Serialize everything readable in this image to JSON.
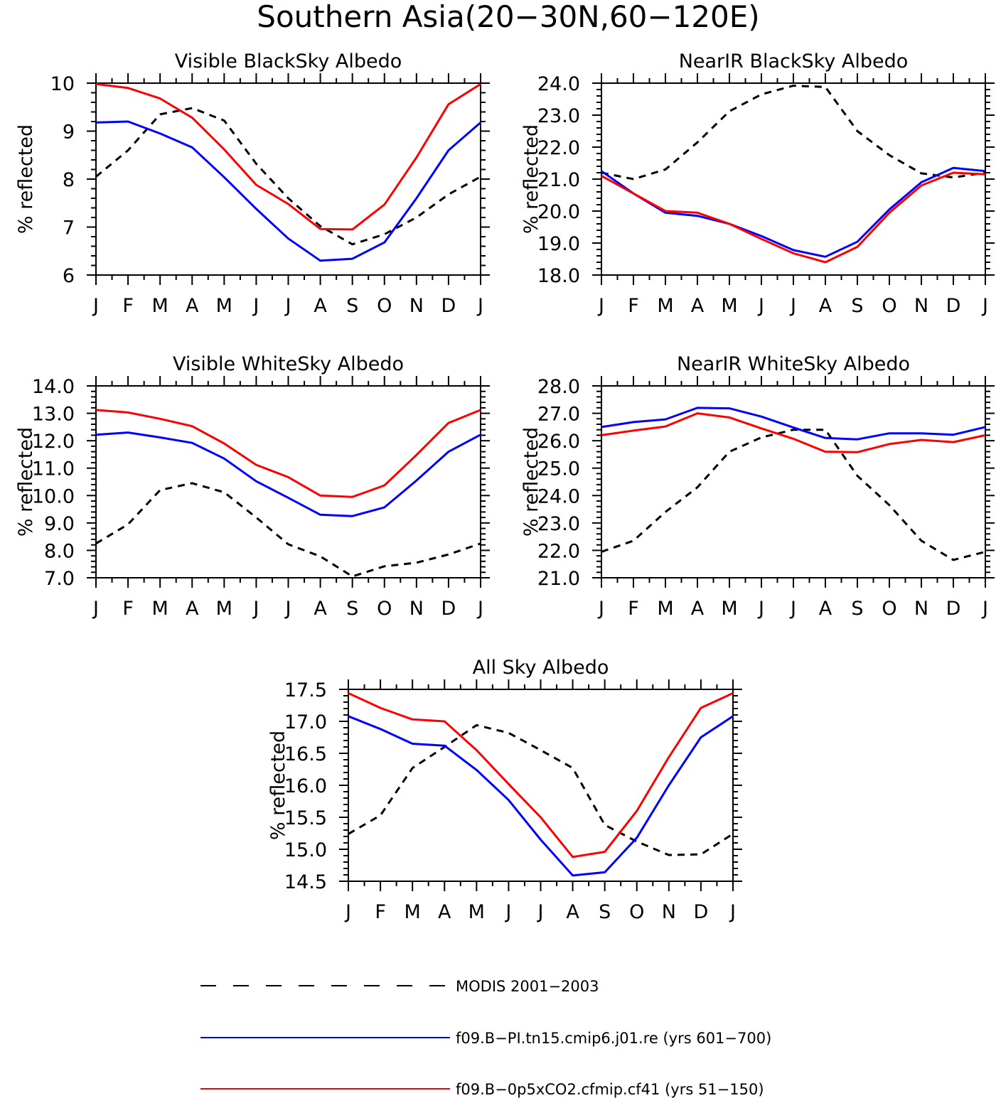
{
  "figure_title": "Southern Asia(20−30N,60−120E)",
  "colors": {
    "modis": "#000000",
    "pi": "#0000ff",
    "co2": "#ff0000"
  },
  "legend": {
    "modis": "MODIS 2001−2003",
    "pi": "f09.B−PI.tn15.cmip6.j01.re (yrs 601−700)",
    "co2": "f09.B−0p5xCO2.cfmip.cf41 (yrs 51−150)"
  },
  "chart_data": [
    {
      "type": "line",
      "title": "Visible BlackSky Albedo",
      "xlabel": "",
      "ylabel": "% reflected",
      "categories": [
        "J",
        "F",
        "M",
        "A",
        "M",
        "J",
        "J",
        "A",
        "S",
        "O",
        "N",
        "D",
        "J"
      ],
      "ylim": [
        6,
        10
      ],
      "yticks": [
        "6",
        "7",
        "8",
        "9",
        "10"
      ],
      "grid": false,
      "series": [
        {
          "key": "modis",
          "dash": true,
          "values": [
            8.05,
            8.6,
            9.35,
            9.48,
            9.22,
            8.32,
            7.6,
            7.02,
            6.64,
            6.85,
            7.2,
            7.68,
            8.05
          ]
        },
        {
          "key": "pi",
          "dash": false,
          "values": [
            9.18,
            9.2,
            8.95,
            8.66,
            8.04,
            7.38,
            6.76,
            6.3,
            6.34,
            6.68,
            7.6,
            8.6,
            9.18
          ]
        },
        {
          "key": "co2",
          "dash": false,
          "values": [
            9.98,
            9.9,
            9.68,
            9.28,
            8.62,
            7.88,
            7.48,
            6.96,
            6.95,
            7.47,
            8.45,
            9.56,
            9.98
          ]
        }
      ]
    },
    {
      "type": "line",
      "title": "NearIR BlackSky Albedo",
      "xlabel": "",
      "ylabel": "% reflected",
      "categories": [
        "J",
        "F",
        "M",
        "A",
        "M",
        "J",
        "J",
        "A",
        "S",
        "O",
        "N",
        "D",
        "J"
      ],
      "ylim": [
        18,
        24
      ],
      "yticks": [
        "18.0",
        "19.0",
        "20.0",
        "21.0",
        "22.0",
        "23.0",
        "24.0"
      ],
      "grid": false,
      "series": [
        {
          "key": "modis",
          "dash": true,
          "values": [
            21.2,
            21.0,
            21.3,
            22.15,
            23.12,
            23.65,
            23.92,
            23.88,
            22.5,
            21.75,
            21.18,
            21.05,
            21.2
          ]
        },
        {
          "key": "pi",
          "dash": false,
          "values": [
            21.25,
            20.55,
            19.95,
            19.85,
            19.6,
            19.22,
            18.78,
            18.57,
            19.04,
            20.05,
            20.9,
            21.35,
            21.25
          ]
        },
        {
          "key": "co2",
          "dash": false,
          "values": [
            21.1,
            20.55,
            20.0,
            19.95,
            19.6,
            19.13,
            18.68,
            18.4,
            18.88,
            19.95,
            20.8,
            21.2,
            21.15
          ]
        }
      ]
    },
    {
      "type": "line",
      "title": "Visible WhiteSky Albedo",
      "xlabel": "",
      "ylabel": "% reflected",
      "categories": [
        "J",
        "F",
        "M",
        "A",
        "M",
        "J",
        "J",
        "A",
        "S",
        "O",
        "N",
        "D",
        "J"
      ],
      "ylim": [
        7,
        14
      ],
      "yticks": [
        "7.0",
        "8.0",
        "9.0",
        "10.0",
        "11.0",
        "12.0",
        "13.0",
        "14.0"
      ],
      "grid": false,
      "series": [
        {
          "key": "modis",
          "dash": true,
          "values": [
            8.25,
            8.95,
            10.2,
            10.45,
            10.12,
            9.2,
            8.22,
            7.78,
            7.05,
            7.42,
            7.55,
            7.85,
            8.25
          ]
        },
        {
          "key": "pi",
          "dash": false,
          "values": [
            12.22,
            12.3,
            12.12,
            11.92,
            11.35,
            10.52,
            9.92,
            9.3,
            9.25,
            9.57,
            10.55,
            11.6,
            12.22
          ]
        },
        {
          "key": "co2",
          "dash": false,
          "values": [
            13.12,
            13.03,
            12.8,
            12.53,
            11.9,
            11.12,
            10.67,
            10.0,
            9.95,
            10.37,
            11.48,
            12.65,
            13.12
          ]
        }
      ]
    },
    {
      "type": "line",
      "title": "NearIR WhiteSky Albedo",
      "xlabel": "",
      "ylabel": "% reflected",
      "categories": [
        "J",
        "F",
        "M",
        "A",
        "M",
        "J",
        "J",
        "A",
        "S",
        "O",
        "N",
        "D",
        "J"
      ],
      "ylim": [
        21,
        28
      ],
      "yticks": [
        "21.0",
        "22.0",
        "23.0",
        "24.0",
        "25.0",
        "26.0",
        "27.0",
        "28.0"
      ],
      "grid": false,
      "series": [
        {
          "key": "modis",
          "dash": true,
          "values": [
            21.95,
            22.35,
            23.4,
            24.3,
            25.6,
            26.12,
            26.4,
            26.4,
            24.72,
            23.65,
            22.35,
            21.65,
            21.95
          ]
        },
        {
          "key": "pi",
          "dash": false,
          "values": [
            26.5,
            26.68,
            26.78,
            27.2,
            27.18,
            26.88,
            26.48,
            26.1,
            26.05,
            26.27,
            26.27,
            26.22,
            26.5
          ]
        },
        {
          "key": "co2",
          "dash": false,
          "values": [
            26.2,
            26.37,
            26.52,
            27.0,
            26.85,
            26.45,
            26.07,
            25.6,
            25.58,
            25.88,
            26.03,
            25.95,
            26.2
          ]
        }
      ]
    },
    {
      "type": "line",
      "title": "All Sky Albedo",
      "xlabel": "",
      "ylabel": "% reflected",
      "categories": [
        "J",
        "F",
        "M",
        "A",
        "M",
        "J",
        "J",
        "A",
        "S",
        "O",
        "N",
        "D",
        "J"
      ],
      "ylim": [
        14.5,
        17.5
      ],
      "yticks": [
        "14.5",
        "15.0",
        "15.5",
        "16.0",
        "16.5",
        "17.0",
        "17.5"
      ],
      "grid": false,
      "series": [
        {
          "key": "modis",
          "dash": true,
          "values": [
            15.24,
            15.53,
            16.27,
            16.6,
            16.94,
            16.82,
            16.55,
            16.27,
            15.38,
            15.12,
            14.91,
            14.92,
            15.24
          ]
        },
        {
          "key": "pi",
          "dash": false,
          "values": [
            17.08,
            16.88,
            16.65,
            16.62,
            16.24,
            15.77,
            15.15,
            14.59,
            14.64,
            15.18,
            16.0,
            16.75,
            17.08
          ]
        },
        {
          "key": "co2",
          "dash": false,
          "values": [
            17.44,
            17.21,
            17.03,
            17.0,
            16.55,
            16.02,
            15.5,
            14.88,
            14.96,
            15.6,
            16.44,
            17.21,
            17.44
          ]
        }
      ]
    }
  ]
}
